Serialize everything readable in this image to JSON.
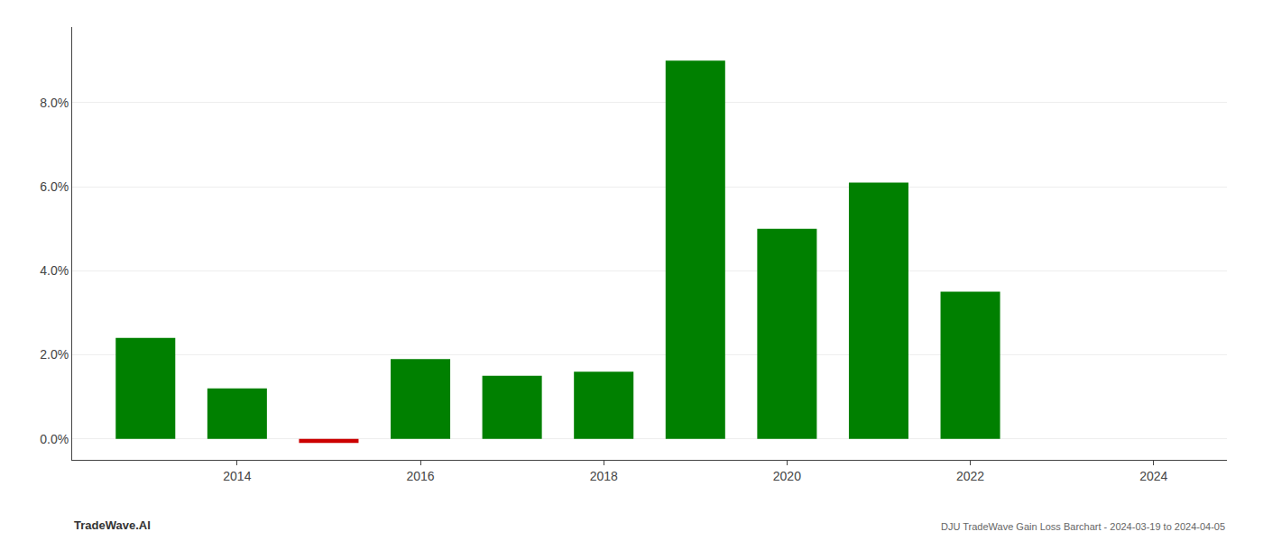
{
  "chart_data": {
    "type": "bar",
    "x": [
      2013,
      2014,
      2015,
      2016,
      2017,
      2018,
      2019,
      2020,
      2021,
      2022,
      2023
    ],
    "values": [
      0.024,
      0.012,
      -0.001,
      0.019,
      0.015,
      0.016,
      0.09,
      0.05,
      0.061,
      0.035,
      0.0
    ],
    "colors": [
      "#008000",
      "#008000",
      "#cc0000",
      "#008000",
      "#008000",
      "#008000",
      "#008000",
      "#008000",
      "#008000",
      "#008000",
      "#008000"
    ],
    "xlim": [
      2012.2,
      2024.8
    ],
    "xticks": [
      2014,
      2016,
      2018,
      2020,
      2022,
      2024
    ],
    "ylim": [
      -0.005,
      0.098
    ],
    "yticks": [
      {
        "value": 0.0,
        "label": "0.0%"
      },
      {
        "value": 0.02,
        "label": "2.0%"
      },
      {
        "value": 0.04,
        "label": "4.0%"
      },
      {
        "value": 0.06,
        "label": "6.0%"
      },
      {
        "value": 0.08,
        "label": "8.0%"
      }
    ],
    "grid": "y",
    "annotations": [
      "TradeWave.AI",
      "DJU TradeWave Gain Loss Barchart - 2024-03-19 to 2024-04-05"
    ]
  }
}
